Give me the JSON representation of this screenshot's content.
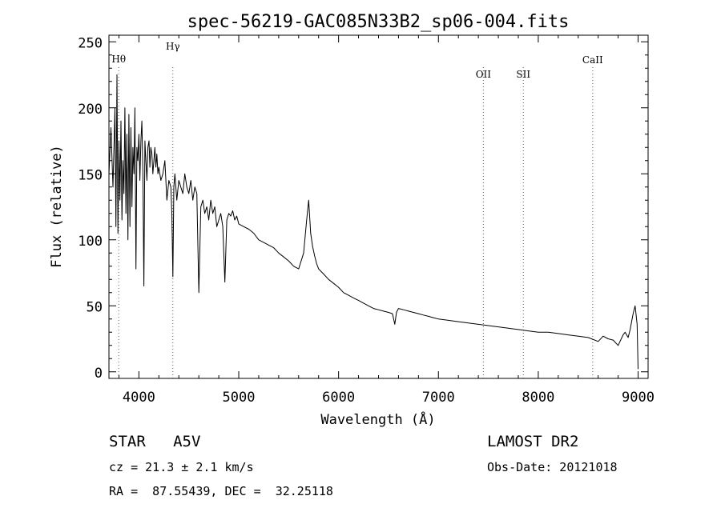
{
  "chart_data": {
    "type": "line",
    "title": "spec-56219-GAC085N33B2_sp06-004.fits",
    "xlabel": "Wavelength (Å)",
    "ylabel": "Flux (relative)",
    "xlim": [
      3700,
      9100
    ],
    "ylim": [
      -5,
      255
    ],
    "xticks": [
      4000,
      5000,
      6000,
      7000,
      8000,
      9000
    ],
    "yticks": [
      0,
      50,
      100,
      150,
      200,
      250
    ],
    "grid": false,
    "lines": [
      {
        "label": "Hθ",
        "x": 3798
      },
      {
        "label": "Hγ",
        "x": 4340
      },
      {
        "label": "OII",
        "x": 7450
      },
      {
        "label": "SII",
        "x": 7850
      },
      {
        "label": "CaII",
        "x": 8545
      }
    ],
    "series": [
      {
        "x": [
          3700,
          3720,
          3740,
          3760,
          3770,
          3780,
          3790,
          3800,
          3810,
          3820,
          3830,
          3840,
          3850,
          3860,
          3870,
          3880,
          3890,
          3900,
          3910,
          3920,
          3930,
          3940,
          3950,
          3960,
          3970,
          3980,
          3990,
          4000,
          4010,
          4020,
          4030,
          4040,
          4050,
          4060,
          4070,
          4080,
          4090,
          4101,
          4110,
          4120,
          4130,
          4140,
          4150,
          4160,
          4170,
          4180,
          4190,
          4200,
          4220,
          4240,
          4260,
          4280,
          4300,
          4320,
          4330,
          4340,
          4350,
          4360,
          4380,
          4400,
          4420,
          4440,
          4460,
          4480,
          4500,
          4520,
          4540,
          4560,
          4580,
          4600,
          4620,
          4640,
          4660,
          4680,
          4700,
          4720,
          4740,
          4760,
          4780,
          4800,
          4820,
          4840,
          4861,
          4880,
          4900,
          4920,
          4940,
          4960,
          4980,
          5000,
          5050,
          5100,
          5150,
          5200,
          5250,
          5300,
          5350,
          5400,
          5450,
          5500,
          5550,
          5600,
          5650,
          5680,
          5700,
          5710,
          5720,
          5740,
          5760,
          5780,
          5800,
          5850,
          5900,
          5950,
          6000,
          6050,
          6100,
          6150,
          6200,
          6250,
          6300,
          6350,
          6400,
          6450,
          6500,
          6540,
          6563,
          6580,
          6600,
          6650,
          6700,
          6750,
          6800,
          6850,
          6900,
          6950,
          7000,
          7100,
          7200,
          7300,
          7400,
          7500,
          7600,
          7700,
          7800,
          7900,
          8000,
          8100,
          8200,
          8300,
          8400,
          8500,
          8600,
          8650,
          8700,
          8750,
          8800,
          8850,
          8870,
          8900,
          8920,
          8950,
          8970,
          8990,
          9000
        ],
        "values": [
          150,
          185,
          140,
          200,
          110,
          225,
          105,
          175,
          130,
          190,
          115,
          160,
          135,
          200,
          120,
          180,
          100,
          195,
          110,
          185,
          125,
          170,
          150,
          200,
          78,
          170,
          160,
          180,
          145,
          175,
          190,
          150,
          65,
          175,
          160,
          145,
          170,
          175,
          155,
          170,
          165,
          150,
          160,
          170,
          155,
          165,
          150,
          155,
          145,
          150,
          160,
          130,
          145,
          140,
          120,
          72,
          140,
          150,
          130,
          145,
          140,
          135,
          150,
          140,
          135,
          145,
          130,
          140,
          135,
          60,
          125,
          130,
          120,
          125,
          115,
          130,
          120,
          125,
          110,
          115,
          120,
          110,
          68,
          115,
          120,
          118,
          122,
          115,
          118,
          112,
          110,
          108,
          105,
          100,
          98,
          96,
          94,
          90,
          87,
          84,
          80,
          78,
          90,
          115,
          130,
          118,
          105,
          95,
          88,
          82,
          78,
          74,
          70,
          67,
          64,
          60,
          58,
          56,
          54,
          52,
          50,
          48,
          47,
          46,
          45,
          44,
          36,
          45,
          48,
          47,
          46,
          45,
          44,
          43,
          42,
          41,
          40,
          39,
          38,
          37,
          36,
          35,
          34,
          33,
          32,
          31,
          30,
          30,
          29,
          28,
          27,
          26,
          23,
          27,
          25,
          24,
          20,
          28,
          30,
          26,
          32,
          44,
          50,
          36,
          2
        ]
      }
    ]
  },
  "info": {
    "left_line1": "STAR   A5V",
    "left_line2": "cz = 21.3 ± 2.1 km/s",
    "left_line3": "RA =  87.55439, DEC =  32.25118",
    "right_line1": "LAMOST DR2",
    "right_line2": "Obs-Date: 20121018"
  }
}
